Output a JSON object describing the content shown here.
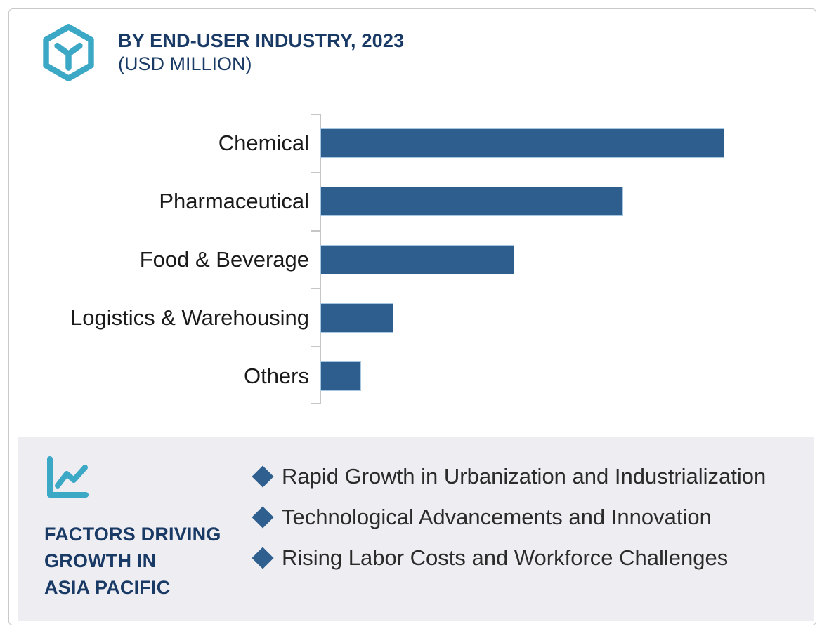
{
  "theme": {
    "navy": "#1A3A66",
    "teal": "#3BA8C6",
    "bar_blue": "#2E5E8E",
    "bar_edge": "#A7C6DF",
    "panel_bg": "#EDEDF2",
    "axis_gray": "#C6C6C6",
    "bullet_blue": "#2E5F8F",
    "card_border": "#C9C9C9"
  },
  "header": {
    "logo_icon": "hexagon-y-logo-icon",
    "title_line1": "BY END-USER INDUSTRY, 2023",
    "title_line2": "(USD MILLION)"
  },
  "chart_data": {
    "type": "bar",
    "orientation": "horizontal",
    "title": "BY END-USER INDUSTRY, 2023 (USD MILLION)",
    "unit": "USD Million",
    "categories": [
      "Chemical",
      "Pharmaceutical",
      "Food & Beverage",
      "Logistics & Warehousing",
      "Others"
    ],
    "values": [
      100,
      75,
      48,
      18,
      10
    ],
    "values_note": "Relative bar lengths (% of longest bar, Chemical = 100); numeric axis is not labeled in the source image",
    "bar_color": "#2E5E8E",
    "grid": false,
    "legend": false,
    "value_labels": false,
    "axis": {
      "y_ticks": 6,
      "x_axis_labels": "none"
    }
  },
  "factors_panel": {
    "icon": "trend-line-chart-icon",
    "heading_lines": [
      "FACTORS DRIVING",
      "GROWTH IN",
      "ASIA PACIFIC"
    ],
    "bullets": [
      "Rapid Growth in  Urbanization and Industrialization",
      "Technological Advancements and Innovation",
      "Rising Labor Costs and Workforce Challenges"
    ]
  }
}
